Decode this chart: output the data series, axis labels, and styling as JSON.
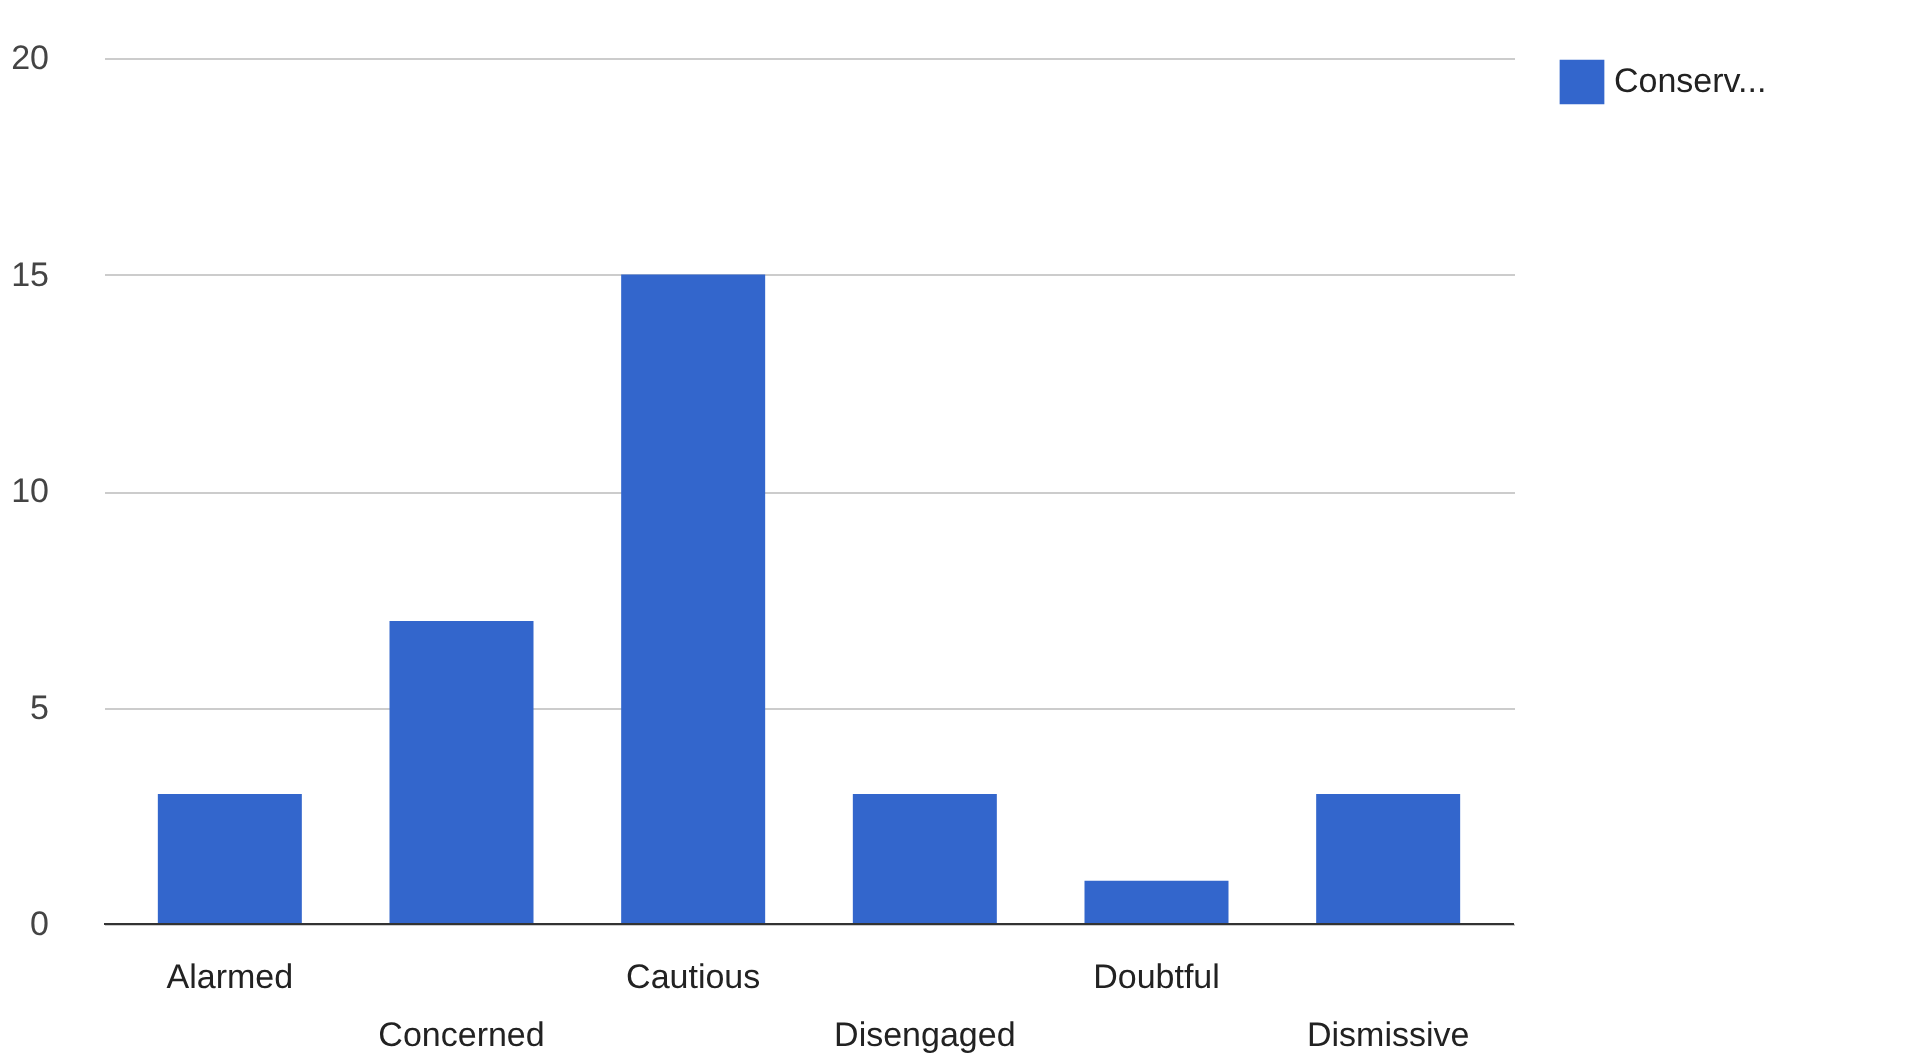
{
  "chart_data": {
    "type": "bar",
    "categories": [
      "Alarmed",
      "Concerned",
      "Cautious",
      "Disengaged",
      "Doubtful",
      "Dismissive"
    ],
    "series": [
      {
        "name": "Conserv...",
        "color": "#3366cc",
        "values": [
          3,
          7,
          15,
          3,
          1,
          3
        ]
      }
    ],
    "ylim": [
      0,
      20
    ],
    "yticks": [
      0,
      5,
      10,
      15,
      20
    ],
    "grid": "y",
    "legend": "top right"
  }
}
